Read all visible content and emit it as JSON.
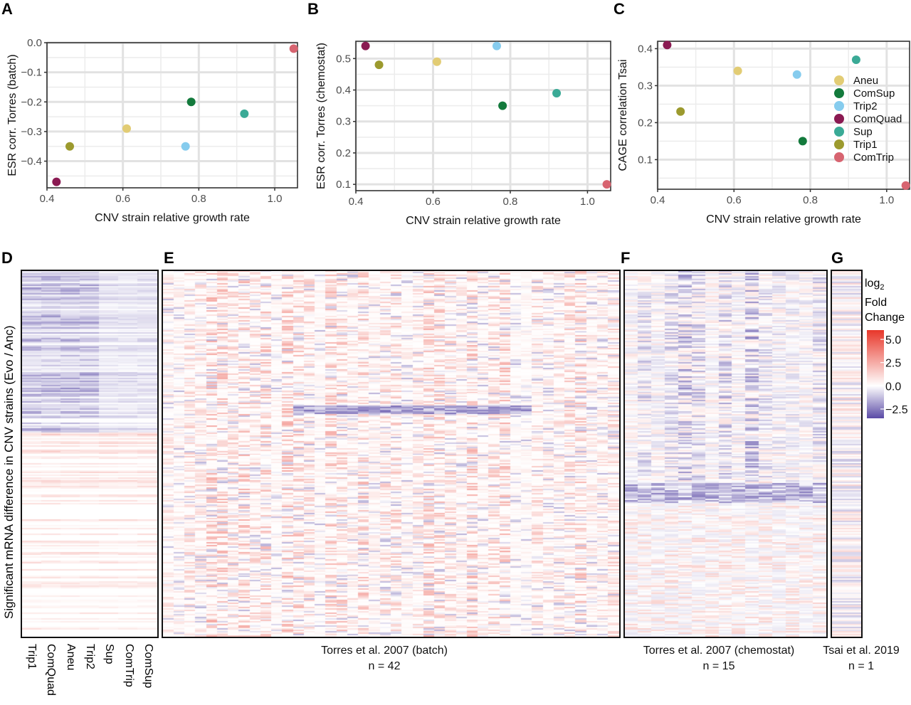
{
  "panels": {
    "A": "A",
    "B": "B",
    "C": "C",
    "D": "D",
    "E": "E",
    "F": "F",
    "G": "G"
  },
  "strains": [
    {
      "name": "Aneu",
      "color": "#E2CC74"
    },
    {
      "name": "ComSup",
      "color": "#137A3C"
    },
    {
      "name": "Trip2",
      "color": "#86CCEE"
    },
    {
      "name": "ComQuad",
      "color": "#8A1A52"
    },
    {
      "name": "Sup",
      "color": "#3AAA96"
    },
    {
      "name": "Trip1",
      "color": "#9C9A2E"
    },
    {
      "name": "ComTrip",
      "color": "#D76470"
    }
  ],
  "chart_data": [
    {
      "type": "scatter",
      "panel": "A",
      "xlabel": "CNV strain relative growth rate",
      "ylabel": "ESR corr. Torres (batch)",
      "xlim": [
        0.4,
        1.06
      ],
      "ylim": [
        -0.49,
        0.0
      ],
      "xticks": [
        0.4,
        0.6,
        0.8,
        1.0
      ],
      "xtick_labels": [
        "0.4",
        "0.6",
        "0.8",
        "1.0"
      ],
      "yticks": [
        0.0,
        -0.1,
        -0.2,
        -0.3,
        -0.4
      ],
      "ytick_labels": [
        "0.0",
        "−0.1",
        "−0.2",
        "−0.3",
        "−0.4"
      ],
      "grid": true,
      "legend": "none",
      "points": [
        {
          "strain": "Aneu",
          "x": 0.61,
          "y": -0.29
        },
        {
          "strain": "ComSup",
          "x": 0.78,
          "y": -0.2
        },
        {
          "strain": "Trip2",
          "x": 0.765,
          "y": -0.35
        },
        {
          "strain": "ComQuad",
          "x": 0.425,
          "y": -0.47
        },
        {
          "strain": "Sup",
          "x": 0.92,
          "y": -0.24
        },
        {
          "strain": "Trip1",
          "x": 0.46,
          "y": -0.35
        },
        {
          "strain": "ComTrip",
          "x": 1.05,
          "y": -0.02
        }
      ]
    },
    {
      "type": "scatter",
      "panel": "B",
      "xlabel": "CNV strain relative growth rate",
      "ylabel": "ESR corr. Torres (chemostat)",
      "xlim": [
        0.4,
        1.06
      ],
      "ylim": [
        0.08,
        0.555
      ],
      "xticks": [
        0.4,
        0.6,
        0.8,
        1.0
      ],
      "xtick_labels": [
        "0.4",
        "0.6",
        "0.8",
        "1.0"
      ],
      "yticks": [
        0.1,
        0.2,
        0.3,
        0.4,
        0.5
      ],
      "ytick_labels": [
        "0.1",
        "0.2",
        "0.3",
        "0.4",
        "0.5"
      ],
      "grid": true,
      "legend": "none",
      "points": [
        {
          "strain": "Aneu",
          "x": 0.61,
          "y": 0.49
        },
        {
          "strain": "ComSup",
          "x": 0.78,
          "y": 0.35
        },
        {
          "strain": "Trip2",
          "x": 0.765,
          "y": 0.54
        },
        {
          "strain": "ComQuad",
          "x": 0.425,
          "y": 0.54
        },
        {
          "strain": "Sup",
          "x": 0.92,
          "y": 0.39
        },
        {
          "strain": "Trip1",
          "x": 0.46,
          "y": 0.48
        },
        {
          "strain": "ComTrip",
          "x": 1.05,
          "y": 0.1
        }
      ]
    },
    {
      "type": "scatter",
      "panel": "C",
      "xlabel": "CNV strain relative growth rate",
      "ylabel": "CAGE correlation Tsai",
      "xlim": [
        0.4,
        1.06
      ],
      "ylim": [
        0.02,
        0.42
      ],
      "xticks": [
        0.4,
        0.6,
        0.8,
        1.0
      ],
      "xtick_labels": [
        "0.4",
        "0.6",
        "0.8",
        "1.0"
      ],
      "yticks": [
        0.1,
        0.2,
        0.3,
        0.4
      ],
      "ytick_labels": [
        "0.1",
        "0.2",
        "0.3",
        "0.4"
      ],
      "grid": true,
      "legend": "right-inside",
      "points": [
        {
          "strain": "Aneu",
          "x": 0.61,
          "y": 0.34
        },
        {
          "strain": "ComSup",
          "x": 0.78,
          "y": 0.15
        },
        {
          "strain": "Trip2",
          "x": 0.765,
          "y": 0.33
        },
        {
          "strain": "ComQuad",
          "x": 0.425,
          "y": 0.41
        },
        {
          "strain": "Sup",
          "x": 0.92,
          "y": 0.37
        },
        {
          "strain": "Trip1",
          "x": 0.46,
          "y": 0.23
        },
        {
          "strain": "ComTrip",
          "x": 1.05,
          "y": 0.03
        }
      ]
    },
    {
      "type": "heatmap",
      "panel": "D",
      "ylabel": "Significant mRNA difference in CNV strains (Evo / Anc)",
      "columns": [
        "Trip1",
        "ComQuad",
        "Aneu",
        "Trip2",
        "Sup",
        "ComTrip",
        "ComSup"
      ],
      "ncols": 7
    },
    {
      "type": "heatmap",
      "panel": "E",
      "caption": "Torres et al. 2007 (batch)",
      "n_label": "n = 42",
      "ncols": 42
    },
    {
      "type": "heatmap",
      "panel": "F",
      "caption": "Torres et al. 2007 (chemostat)",
      "n_label": "n = 15",
      "ncols": 15
    },
    {
      "type": "heatmap",
      "panel": "G",
      "caption": "Tsai et al. 2019",
      "n_label": "n = 1",
      "ncols": 1
    }
  ],
  "colorbar": {
    "title_line1": "log",
    "title_sub": "2",
    "title_line2": "Fold",
    "title_line3": "Change",
    "ticks": [
      5.0,
      2.5,
      0.0,
      -2.5
    ],
    "tick_labels": [
      "5.0",
      "2.5",
      "0.0",
      "−2.5"
    ],
    "range": [
      -3.5,
      6.0
    ],
    "low_color": "#5A4AA6",
    "mid_color": "#FFFFFF",
    "high_color": "#E8372A"
  }
}
